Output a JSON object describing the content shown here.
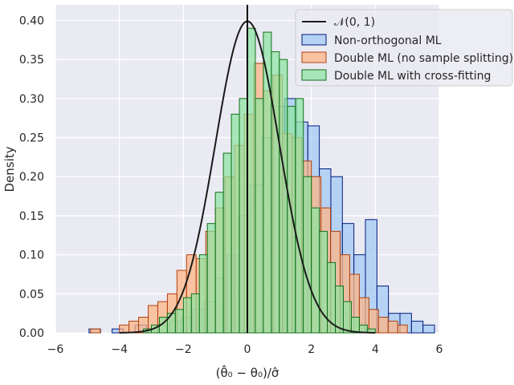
{
  "chart_data": {
    "type": "bar",
    "title": "",
    "xlabel": "(θ̂₀ − θ₀)/σ̂",
    "ylabel": "Density",
    "xlim": [
      -6,
      6
    ],
    "ylim": [
      0,
      0.42
    ],
    "x_ticks": [
      -6,
      -4,
      -2,
      0,
      2,
      4,
      6
    ],
    "y_ticks": [
      0.0,
      0.05,
      0.1,
      0.15,
      0.2,
      0.25,
      0.3,
      0.35,
      0.4
    ],
    "x_tick_labels": [
      "−6",
      "−4",
      "−2",
      "0",
      "2",
      "4",
      "6"
    ],
    "y_tick_labels": [
      "0.00",
      "0.05",
      "0.10",
      "0.15",
      "0.20",
      "0.25",
      "0.30",
      "0.35",
      "0.40"
    ],
    "grid": true,
    "legend_position": "top-right",
    "vertical_line_x": 0,
    "curve": {
      "name": "𝒩(0, 1)",
      "kind": "normal_pdf",
      "mean": 0,
      "sd": 1,
      "color": "#1a1a1a"
    },
    "series": [
      {
        "name": "Non-orthogonal ML",
        "fill": "#a1c9f4",
        "edge": "#001c7f",
        "bin_width": 0.36,
        "x_start": -4.95,
        "densities": [
          0.005,
          0.0,
          0.005,
          0.0,
          0.01,
          0.005,
          0.01,
          0.015,
          0.02,
          0.03,
          0.04,
          0.07,
          0.1,
          0.15,
          0.19,
          0.25,
          0.29,
          0.3,
          0.27,
          0.265,
          0.21,
          0.2,
          0.14,
          0.1,
          0.145,
          0.06,
          0.025,
          0.025,
          0.015,
          0.01,
          0.0
        ]
      },
      {
        "name": "Double ML (no sample splitting)",
        "fill": "#ffb482",
        "edge": "#b1400d",
        "bin_width": 0.3,
        "x_start": -4.9,
        "densities": [
          0.005,
          0.0,
          0.0,
          0.01,
          0.015,
          0.02,
          0.035,
          0.04,
          0.05,
          0.08,
          0.1,
          0.095,
          0.13,
          0.16,
          0.2,
          0.24,
          0.28,
          0.345,
          0.31,
          0.33,
          0.255,
          0.25,
          0.22,
          0.2,
          0.16,
          0.13,
          0.1,
          0.075,
          0.045,
          0.03,
          0.02,
          0.015,
          0.01,
          0.0
        ]
      },
      {
        "name": "Double ML with cross-fitting",
        "fill": "#8de5a1",
        "edge": "#12711c",
        "bin_width": 0.25,
        "x_start": -3.5,
        "densities": [
          0.0,
          0.005,
          0.01,
          0.02,
          0.025,
          0.03,
          0.045,
          0.05,
          0.1,
          0.14,
          0.18,
          0.23,
          0.28,
          0.3,
          0.39,
          0.3,
          0.385,
          0.36,
          0.35,
          0.29,
          0.3,
          0.2,
          0.16,
          0.13,
          0.09,
          0.06,
          0.04,
          0.02,
          0.01,
          0.005,
          0.0
        ]
      }
    ]
  }
}
